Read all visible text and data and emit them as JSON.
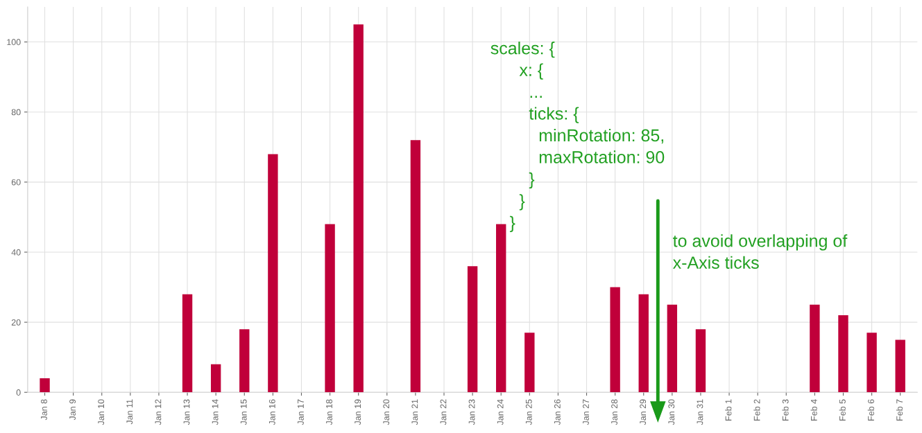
{
  "chart_data": {
    "type": "bar",
    "categories": [
      "Jan 8",
      "Jan 9",
      "Jan 10",
      "Jan 11",
      "Jan 12",
      "Jan 13",
      "Jan 14",
      "Jan 15",
      "Jan 16",
      "Jan 17",
      "Jan 18",
      "Jan 19",
      "Jan 20",
      "Jan 21",
      "Jan 22",
      "Jan 23",
      "Jan 24",
      "Jan 25",
      "Jan 26",
      "Jan 27",
      "Jan 28",
      "Jan 29",
      "Jan 30",
      "Jan 31",
      "Feb 1",
      "Feb 2",
      "Feb 3",
      "Feb 4",
      "Feb 5",
      "Feb 6",
      "Feb 7"
    ],
    "series": [
      {
        "color": "#c0003a",
        "values": [
          4,
          null,
          null,
          null,
          null,
          28,
          8,
          18,
          68,
          null,
          48,
          105,
          null,
          72,
          null,
          36,
          48,
          17,
          null,
          null,
          30,
          28,
          25,
          18,
          null,
          null,
          null,
          25,
          22,
          17,
          15
        ]
      }
    ],
    "ylim": [
      0,
      110
    ],
    "yticks": [
      0,
      20,
      40,
      60,
      80,
      100
    ],
    "grid": true,
    "annotations": [
      "scales: {\n      x: {\n        ...\n        ticks: {\n          minRotation: 85,\n          maxRotation: 90\n        }\n      }\n    }",
      "to avoid overlapping of\nx-Axis ticks"
    ]
  }
}
